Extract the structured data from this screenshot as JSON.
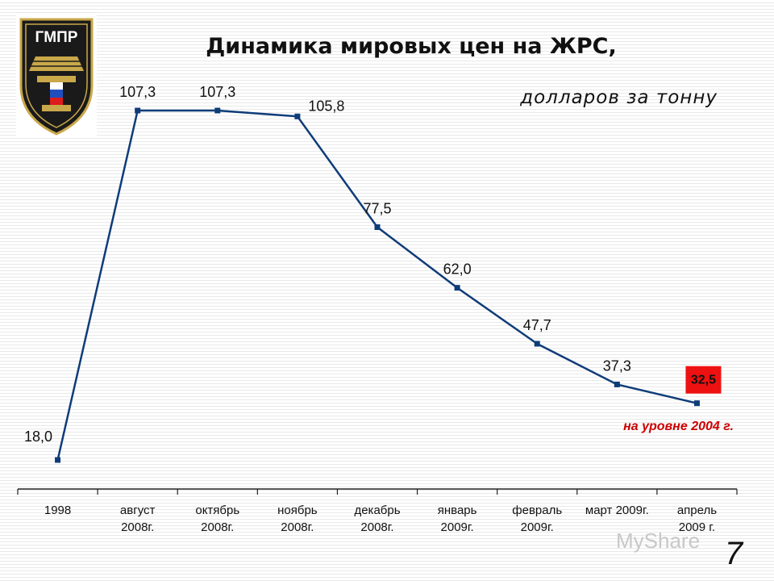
{
  "logo": {
    "text": "ГМПР"
  },
  "header": {
    "title": "Динамика мировых цен на ЖРС,",
    "subtitle": "долларов за тонну"
  },
  "annotation": "на уровне 2004 г.",
  "page_number": "7",
  "watermark": "MyShare",
  "colors": {
    "line": "#0f3c78",
    "marker": "#0f3c78",
    "highlight_box": "#ee1111",
    "annotation_text": "#cc0000"
  },
  "chart_data": {
    "type": "line",
    "title": "Динамика мировых цен на ЖРС,",
    "subtitle": "долларов за тонну",
    "categories": [
      [
        "1998"
      ],
      [
        "август",
        "2008г."
      ],
      [
        "октябрь",
        "2008г."
      ],
      [
        "ноябрь",
        "2008г."
      ],
      [
        "декабрь",
        "2008г."
      ],
      [
        "январь",
        "2009г."
      ],
      [
        "февраль",
        "2009г."
      ],
      [
        "март 2009г."
      ],
      [
        "апрель",
        "2009 г."
      ]
    ],
    "values": [
      18.0,
      107.3,
      107.3,
      105.8,
      77.5,
      62.0,
      47.7,
      37.3,
      32.5
    ],
    "value_labels": [
      "18,0",
      "107,3",
      "107,3",
      "105,8",
      "77,5",
      "62,0",
      "47,7",
      "37,3",
      "32,5"
    ],
    "highlighted_index": 8,
    "ylim": [
      0,
      115
    ],
    "grid": false,
    "legend": "none"
  }
}
